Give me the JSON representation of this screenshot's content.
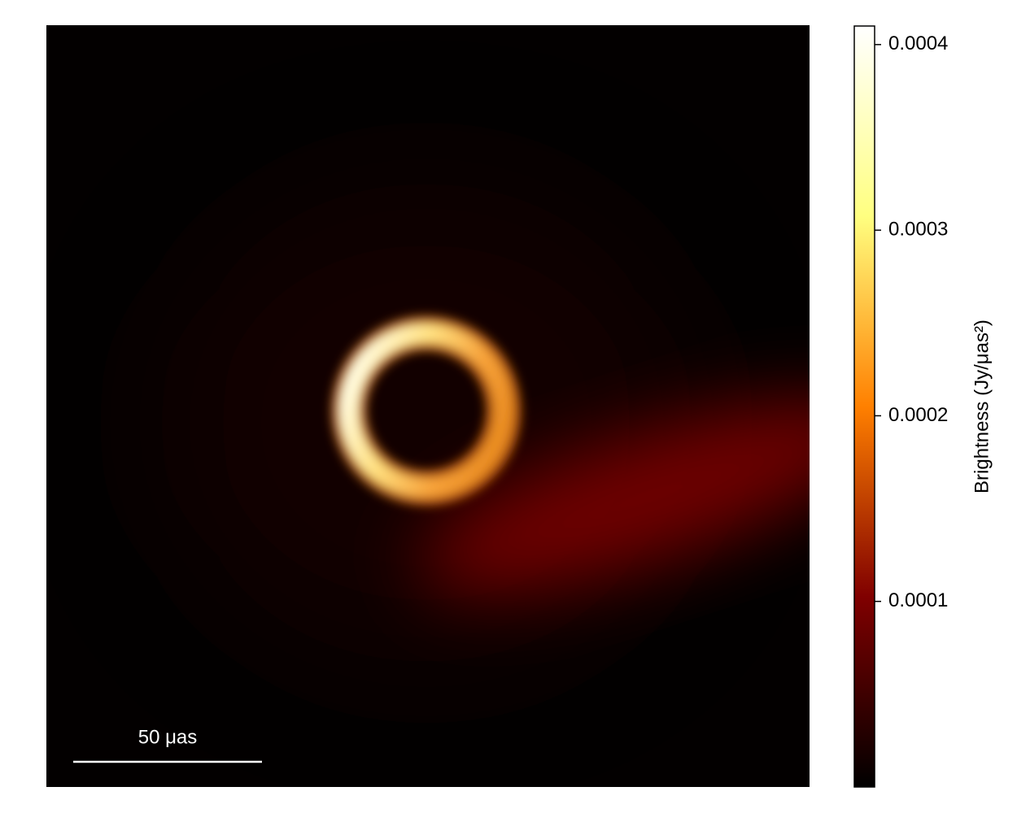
{
  "chart_data": {
    "type": "image",
    "colormap": "afmhot",
    "colorbar": {
      "label": "Brightness (Jy/μas²)",
      "clim": [
        0,
        0.00041
      ],
      "ticks": [
        0.0001,
        0.0002,
        0.0003,
        0.0004
      ]
    },
    "scalebar": {
      "label": "50 μas"
    }
  }
}
